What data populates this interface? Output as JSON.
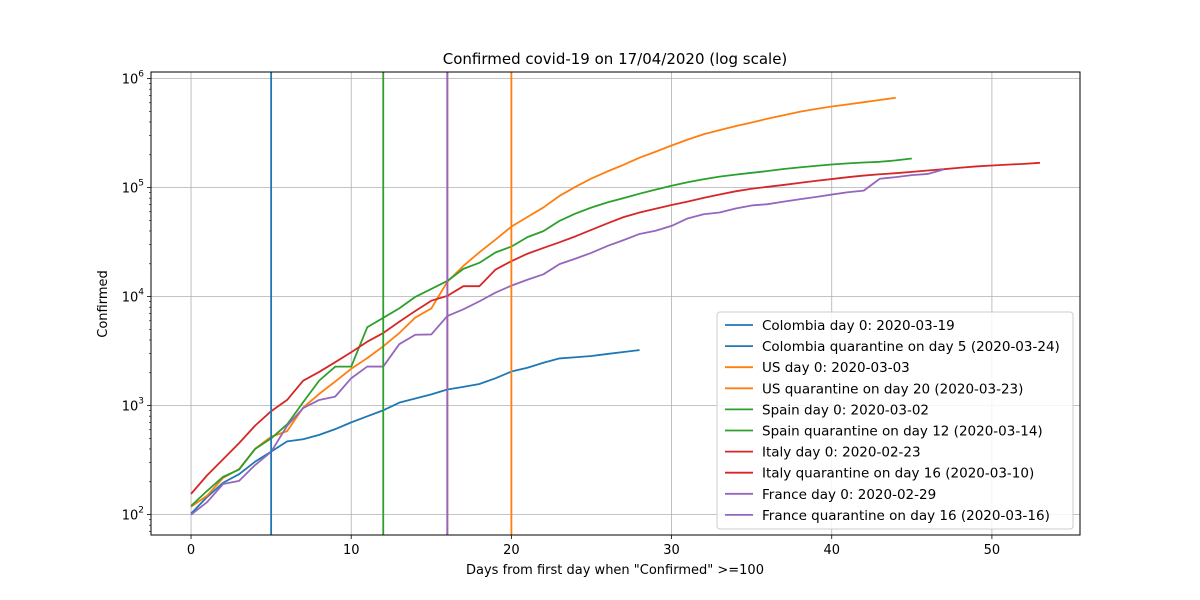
{
  "chart_data": {
    "type": "line",
    "title": "Confirmed covid-19 on 17/04/2020  (log scale)",
    "xlabel": "Days from first day when \"Confirmed\" >=100",
    "ylabel": "Confirmed",
    "yscale": "log",
    "xlim": [
      -2.5,
      55.5
    ],
    "ylim": [
      65,
      1150000
    ],
    "grid": true,
    "legend_position": "lower-right",
    "x_ticks": [
      0,
      10,
      20,
      30,
      40,
      50
    ],
    "y_ticks": [
      {
        "value": 100,
        "base": "10",
        "exp": "2"
      },
      {
        "value": 1000,
        "base": "10",
        "exp": "3"
      },
      {
        "value": 10000,
        "base": "10",
        "exp": "4"
      },
      {
        "value": 100000,
        "base": "10",
        "exp": "5"
      },
      {
        "value": 1000000,
        "base": "10",
        "exp": "6"
      }
    ],
    "series": [
      {
        "name": "Colombia day 0: 2020-03-19",
        "quarantine_label": "Colombia quarantine on day 5 (2020-03-24)",
        "quarantine_day": 5,
        "color": "#1f77b4",
        "x": [
          0,
          1,
          2,
          3,
          4,
          5,
          6,
          7,
          8,
          9,
          10,
          11,
          12,
          13,
          14,
          15,
          16,
          17,
          18,
          19,
          20,
          21,
          22,
          23,
          24,
          25,
          26,
          27,
          28
        ],
        "y": [
          102,
          145,
          196,
          235,
          306,
          378,
          470,
          491,
          539,
          608,
          702,
          798,
          906,
          1065,
          1161,
          1267,
          1406,
          1485,
          1579,
          1780,
          2054,
          2223,
          2473,
          2709,
          2776,
          2852,
          2979,
          3105,
          3233
        ]
      },
      {
        "name": "US day 0: 2020-03-03",
        "quarantine_label": "US quarantine on day 20 (2020-03-23)",
        "quarantine_day": 20,
        "color": "#ff7f0e",
        "x": [
          0,
          1,
          2,
          3,
          4,
          5,
          6,
          7,
          8,
          9,
          10,
          11,
          12,
          13,
          14,
          15,
          16,
          17,
          18,
          19,
          20,
          21,
          22,
          23,
          24,
          25,
          26,
          27,
          28,
          29,
          30,
          31,
          32,
          33,
          34,
          35,
          36,
          37,
          38,
          39,
          40,
          41,
          42,
          43,
          44
        ],
        "y": [
          118,
          149,
          217,
          262,
          402,
          518,
          583,
          959,
          1281,
          1663,
          2179,
          2727,
          3499,
          4632,
          6421,
          7786,
          13680,
          19101,
          25493,
          33276,
          43847,
          53740,
          65778,
          83836,
          101657,
          121478,
          140886,
          161807,
          188172,
          213372,
          243453,
          275586,
          308850,
          337072,
          366667,
          396223,
          429052,
          461437,
          496535,
          526396,
          555313,
          580619,
          607670,
          636350,
          667801
        ]
      },
      {
        "name": "Spain day 0: 2020-03-02",
        "quarantine_label": "Spain quarantine on day 12 (2020-03-14)",
        "quarantine_day": 12,
        "color": "#2ca02c",
        "x": [
          0,
          1,
          2,
          3,
          4,
          5,
          6,
          7,
          8,
          9,
          10,
          11,
          12,
          13,
          14,
          15,
          16,
          17,
          18,
          19,
          20,
          21,
          22,
          23,
          24,
          25,
          26,
          27,
          28,
          29,
          30,
          31,
          32,
          33,
          34,
          35,
          36,
          37,
          38,
          39,
          40,
          41,
          42,
          43,
          44,
          45
        ],
        "y": [
          120,
          165,
          222,
          259,
          400,
          500,
          673,
          1073,
          1695,
          2277,
          2277,
          5232,
          6391,
          7798,
          9942,
          11748,
          13910,
          17963,
          20410,
          25374,
          28768,
          35136,
          39885,
          49515,
          57786,
          65719,
          73235,
          80110,
          87956,
          95923,
          104118,
          112065,
          119199,
          126168,
          131646,
          136675,
          141942,
          148220,
          153222,
          158273,
          163027,
          166831,
          170099,
          172541,
          177644,
          184948
        ]
      },
      {
        "name": "Italy day 0: 2020-02-23",
        "quarantine_label": "Italy quarantine on day 16 (2020-03-10)",
        "quarantine_day": 16,
        "color": "#d62728",
        "x": [
          0,
          1,
          2,
          3,
          4,
          5,
          6,
          7,
          8,
          9,
          10,
          11,
          12,
          13,
          14,
          15,
          16,
          17,
          18,
          19,
          20,
          21,
          22,
          23,
          24,
          25,
          26,
          27,
          28,
          29,
          30,
          31,
          32,
          33,
          34,
          35,
          36,
          37,
          38,
          39,
          40,
          41,
          42,
          43,
          44,
          45,
          46,
          47,
          48,
          49,
          50,
          51,
          52,
          53
        ],
        "y": [
          155,
          229,
          322,
          453,
          655,
          888,
          1128,
          1694,
          2036,
          2502,
          3089,
          3858,
          4636,
          5883,
          7375,
          9172,
          10149,
          12462,
          12462,
          17660,
          21157,
          24747,
          27980,
          31506,
          35713,
          41035,
          47021,
          53578,
          59138,
          63927,
          69176,
          74386,
          80589,
          86498,
          92472,
          97689,
          101739,
          105792,
          110574,
          115242,
          119827,
          124632,
          128948,
          132547,
          135586,
          139422,
          143626,
          147577,
          152271,
          156363,
          159516,
          162488,
          165155,
          168941
        ]
      },
      {
        "name": "France day 0: 2020-02-29",
        "quarantine_label": "France quarantine on day 16 (2020-03-16)",
        "quarantine_day": 16,
        "color": "#9467bd",
        "x": [
          0,
          1,
          2,
          3,
          4,
          5,
          6,
          7,
          8,
          9,
          10,
          11,
          12,
          13,
          14,
          15,
          16,
          17,
          18,
          19,
          20,
          21,
          22,
          23,
          24,
          25,
          26,
          27,
          28,
          29,
          30,
          31,
          32,
          33,
          34,
          35,
          36,
          37,
          38,
          39,
          40,
          41,
          42,
          43,
          44,
          45,
          46,
          47
        ],
        "y": [
          100,
          130,
          191,
          204,
          285,
          377,
          653,
          949,
          1126,
          1209,
          1784,
          2281,
          2281,
          3661,
          4469,
          4499,
          6633,
          7652,
          9043,
          10871,
          12612,
          14282,
          16018,
          19856,
          22304,
          25233,
          29155,
          32964,
          37575,
          40174,
          44550,
          52128,
          56989,
          59105,
          64338,
          68605,
          70478,
          74390,
          78167,
          82048,
          86334,
          90676,
          93790,
          120633,
          124869,
          130253,
          133470,
          147091
        ]
      }
    ]
  }
}
